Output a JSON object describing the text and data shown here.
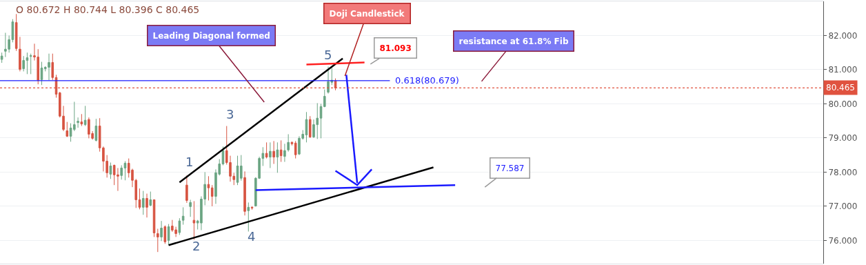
{
  "chart_data": {
    "type": "candlestick",
    "categories": [
      null,
      null,
      null,
      null,
      null,
      null,
      null,
      null,
      null,
      null,
      null,
      null,
      null,
      null,
      null,
      null,
      null,
      null,
      null,
      null,
      null,
      null,
      null,
      null,
      null,
      null,
      null,
      null,
      null,
      null,
      null,
      null,
      null,
      null,
      null,
      null,
      null,
      null,
      null,
      null,
      null,
      null,
      null,
      null,
      null,
      null,
      null,
      null,
      null,
      null,
      null,
      null,
      null,
      null,
      null,
      null,
      null,
      null,
      null,
      null,
      null,
      null,
      null,
      null,
      null,
      null,
      null,
      null,
      null,
      null,
      null,
      null,
      null,
      null,
      null,
      null,
      null,
      null,
      null,
      null,
      null,
      null,
      null,
      null,
      null,
      null,
      null,
      null,
      null,
      null,
      null,
      null,
      null,
      null,
      null,
      null,
      null,
      null,
      null,
      null,
      null,
      null,
      null,
      null,
      null,
      null,
      null,
      null,
      null,
      null,
      null,
      null,
      null,
      null,
      null,
      null,
      null,
      null,
      null,
      null,
      null,
      null,
      null,
      null,
      null,
      null,
      null,
      null,
      null,
      null,
      null,
      null,
      null,
      null,
      null,
      null,
      null,
      null,
      null,
      null,
      null,
      null,
      null,
      null,
      null,
      null,
      null,
      null,
      null,
      null,
      null,
      null,
      null,
      null,
      null,
      null,
      null,
      null,
      null,
      null,
      null,
      null,
      null,
      null,
      null,
      null,
      null,
      null,
      null,
      null,
      null,
      null,
      null,
      null,
      null,
      null,
      null,
      null,
      null,
      null,
      null,
      null,
      null,
      null,
      null,
      null,
      null,
      null,
      null,
      null,
      null,
      null,
      null,
      null,
      null,
      null,
      null,
      null,
      null,
      null,
      null,
      null,
      null,
      null,
      null,
      null,
      null,
      null,
      null,
      null,
      null,
      null,
      null,
      null,
      null,
      null,
      null,
      null,
      null,
      null,
      null,
      null,
      null,
      null,
      null,
      null,
      null
    ],
    "ohlc": [
      [
        81.3,
        81.5,
        81.2,
        81.4
      ],
      [
        81.54,
        82.08,
        81.37,
        81.6
      ],
      [
        81.6,
        82.0,
        81.5,
        81.88
      ],
      [
        81.88,
        82.48,
        81.8,
        82.4
      ],
      [
        82.38,
        82.63,
        81.55,
        81.62
      ],
      [
        81.6,
        81.96,
        80.95,
        81.01
      ],
      [
        81.03,
        81.4,
        80.95,
        81.27
      ],
      [
        81.27,
        81.5,
        80.87,
        81.35
      ],
      [
        81.39,
        81.47,
        80.87,
        81.41
      ],
      [
        81.41,
        81.76,
        81.27,
        81.37
      ],
      [
        81.37,
        81.6,
        80.57,
        80.69
      ],
      [
        80.71,
        81.23,
        80.55,
        81.05
      ],
      [
        81.03,
        81.1,
        80.95,
        81.07
      ],
      [
        81.07,
        81.47,
        80.69,
        81.21
      ],
      [
        81.21,
        81.47,
        80.7,
        80.77
      ],
      [
        80.77,
        80.85,
        80.18,
        80.28
      ],
      [
        80.32,
        80.35,
        79.6,
        79.64
      ],
      [
        79.64,
        79.94,
        79.2,
        79.25
      ],
      [
        79.21,
        79.47,
        79.03,
        79.05
      ],
      [
        79.05,
        79.43,
        78.89,
        79.29
      ],
      [
        79.25,
        80.06,
        79.2,
        79.39
      ],
      [
        79.45,
        79.6,
        79.3,
        79.49
      ],
      [
        79.47,
        79.7,
        79.35,
        79.41
      ],
      [
        79.39,
        79.94,
        79.35,
        79.52
      ],
      [
        79.54,
        79.6,
        78.99,
        79.11
      ],
      [
        79.13,
        79.2,
        78.95,
        78.99
      ],
      [
        78.93,
        79.56,
        78.9,
        79.35
      ],
      [
        79.35,
        79.58,
        78.6,
        78.71
      ],
      [
        78.71,
        78.75,
        78.02,
        78.32
      ],
      [
        78.32,
        78.5,
        77.84,
        77.98
      ],
      [
        77.94,
        78.28,
        77.8,
        78.18
      ],
      [
        78.2,
        78.22,
        77.62,
        77.92
      ],
      [
        77.92,
        78.12,
        77.45,
        77.88
      ],
      [
        77.9,
        78.2,
        77.78,
        78.12
      ],
      [
        78.12,
        78.32,
        77.76,
        78.26
      ],
      [
        78.26,
        78.4,
        77.84,
        77.98
      ],
      [
        78.06,
        78.1,
        77.56,
        77.76
      ],
      [
        77.76,
        77.8,
        76.95,
        77.19
      ],
      [
        77.19,
        77.52,
        76.91,
        76.97
      ],
      [
        76.97,
        77.45,
        76.75,
        77.23
      ],
      [
        77.23,
        77.37,
        76.67,
        76.97
      ],
      [
        77.03,
        77.43,
        77.0,
        77.19
      ],
      [
        77.19,
        77.2,
        76.1,
        76.22
      ],
      [
        76.2,
        76.34,
        75.66,
        76.1
      ],
      [
        76.1,
        76.57,
        75.98,
        76.36
      ],
      [
        76.4,
        76.44,
        75.9,
        75.96
      ],
      [
        76.0,
        76.48,
        75.86,
        76.4
      ],
      [
        76.42,
        76.6,
        76.25,
        76.3
      ],
      [
        76.31,
        76.4,
        76.1,
        76.2
      ],
      [
        76.23,
        76.65,
        76.16,
        76.57
      ],
      [
        76.59,
        76.97,
        76.46,
        76.71
      ],
      [
        77.62,
        77.9,
        77.1,
        77.17
      ],
      [
        76.99,
        77.19,
        76.69,
        77.11
      ],
      [
        76.59,
        77.15,
        76.02,
        76.51
      ],
      [
        76.51,
        76.6,
        76.32,
        76.57
      ],
      [
        76.51,
        77.29,
        76.3,
        77.21
      ],
      [
        77.21,
        78.0,
        77.03,
        77.64
      ],
      [
        77.64,
        77.88,
        77.17,
        77.54
      ],
      [
        77.54,
        77.62,
        77.0,
        77.29
      ],
      [
        77.29,
        78.08,
        77.07,
        77.98
      ],
      [
        77.94,
        78.38,
        77.9,
        78.24
      ],
      [
        78.24,
        78.75,
        78.2,
        78.63
      ],
      [
        78.63,
        79.35,
        78.22,
        78.28
      ],
      [
        78.28,
        78.48,
        77.72,
        77.88
      ],
      [
        77.88,
        77.98,
        77.62,
        77.78
      ],
      [
        77.7,
        78.48,
        77.62,
        78.18
      ],
      [
        77.82,
        78.5,
        77.75,
        78.18
      ],
      [
        77.84,
        78.02,
        76.73,
        76.85
      ],
      [
        76.87,
        77.11,
        76.26,
        76.97
      ],
      [
        76.97,
        77.0,
        76.9,
        76.95
      ],
      [
        77.01,
        77.85,
        76.99,
        77.82
      ],
      [
        77.82,
        78.45,
        77.8,
        78.4
      ],
      [
        78.4,
        78.73,
        78.18,
        78.55
      ],
      [
        78.55,
        78.87,
        78.4,
        78.44
      ],
      [
        78.44,
        78.87,
        78.12,
        78.61
      ],
      [
        78.61,
        78.91,
        78.24,
        78.44
      ],
      [
        78.44,
        78.87,
        77.98,
        78.65
      ],
      [
        78.65,
        78.93,
        78.3,
        78.48
      ],
      [
        78.46,
        78.83,
        78.3,
        78.63
      ],
      [
        78.65,
        79.11,
        78.6,
        78.87
      ],
      [
        78.87,
        78.9,
        78.78,
        78.83
      ],
      [
        78.85,
        78.91,
        78.4,
        78.51
      ],
      [
        78.53,
        79.05,
        78.5,
        78.99
      ],
      [
        78.99,
        79.23,
        78.95,
        79.11
      ],
      [
        79.09,
        79.76,
        78.87,
        79.54
      ],
      [
        79.54,
        79.64,
        79.0,
        79.03
      ],
      [
        79.03,
        79.54,
        79.0,
        79.39
      ],
      [
        79.39,
        80.02,
        78.97,
        79.58
      ],
      [
        79.58,
        80.0,
        78.99,
        79.92
      ],
      [
        79.92,
        80.42,
        79.9,
        80.22
      ],
      [
        80.34,
        81.09,
        80.3,
        80.65
      ],
      [
        80.63,
        81.05,
        80.55,
        80.69
      ],
      [
        80.672,
        80.744,
        80.396,
        80.465
      ],
      null,
      null,
      null,
      null,
      null,
      null,
      null,
      null,
      null,
      null,
      null,
      null,
      null,
      null,
      null,
      null,
      null,
      null,
      null,
      null,
      null,
      null,
      null,
      null,
      null,
      null,
      null,
      null,
      null,
      null,
      null,
      null,
      null,
      null,
      null,
      null,
      null,
      null,
      null,
      null,
      null,
      null,
      null,
      null,
      null,
      null,
      null,
      null,
      null,
      null,
      null,
      null,
      null,
      null,
      null,
      null,
      null,
      null,
      null,
      null,
      null,
      null,
      null,
      null,
      null,
      null,
      null,
      null,
      null,
      null,
      null,
      null,
      null,
      null,
      null,
      null,
      null,
      null,
      null,
      null,
      null,
      null,
      null,
      null,
      null,
      null,
      null,
      null,
      null,
      null,
      null,
      null,
      null,
      null,
      null,
      null,
      null,
      null,
      null,
      null,
      null,
      null,
      null,
      null,
      null,
      null,
      null,
      null,
      null,
      null,
      null,
      null,
      null,
      null,
      null,
      null,
      null,
      null,
      null,
      null,
      null,
      null,
      null,
      null,
      null,
      null,
      null,
      null,
      null,
      null,
      null,
      null,
      null,
      null
    ],
    "colors": [
      "#6ba583",
      "#6ba583",
      "#6ba583",
      "#6ba583",
      "#d75442",
      "#d75442",
      "#6ba583",
      "#6ba583",
      "#6ba583",
      "#d75442",
      "#d75442",
      "#6ba583",
      "#6ba583",
      "#6ba583",
      "#d75442",
      "#d75442",
      "#d75442",
      "#d75442",
      "#d75442",
      "#6ba583",
      "#6ba583",
      "#6ba583",
      "#d75442",
      "#6ba583",
      "#d75442",
      "#d75442",
      "#6ba583",
      "#d75442",
      "#d75442",
      "#d75442",
      "#6ba583",
      "#d75442",
      "#d75442",
      "#6ba583",
      "#6ba583",
      "#d75442",
      "#d75442",
      "#d75442",
      "#d75442",
      "#6ba583",
      "#d75442",
      "#6ba583",
      "#d75442",
      "#d75442",
      "#6ba583",
      "#d75442",
      "#6ba583",
      "#d75442",
      "#d75442",
      "#6ba583",
      "#6ba583",
      "#d75442",
      "#6ba583",
      "#d75442",
      "#6ba583",
      "#6ba583",
      "#6ba583",
      "#d75442",
      "#d75442",
      "#6ba583",
      "#6ba583",
      "#6ba583",
      "#d75442",
      "#d75442",
      "#d75442",
      "#6ba583",
      "#6ba583",
      "#d75442",
      "#6ba583",
      "#d75442",
      "#6ba583",
      "#6ba583",
      "#6ba583",
      "#d75442",
      "#6ba583",
      "#d75442",
      "#6ba583",
      "#d75442",
      "#6ba583",
      "#6ba583",
      "#d75442",
      "#d75442",
      "#6ba583",
      "#6ba583",
      "#6ba583",
      "#d75442",
      "#6ba583",
      "#6ba583",
      "#6ba583",
      "#6ba583",
      "#6ba583",
      "#6ba583",
      "#d75442",
      null,
      null,
      null,
      null,
      null,
      null,
      null,
      null,
      null,
      null,
      null,
      null,
      null,
      null,
      null,
      null,
      null,
      null,
      null,
      null,
      null,
      null,
      null,
      null,
      null,
      null,
      null,
      null,
      null,
      null,
      null,
      null,
      null,
      null,
      null,
      null,
      null,
      null,
      null,
      null,
      null,
      null,
      null,
      null,
      null,
      null,
      null,
      null,
      null,
      null,
      null,
      null,
      null,
      null,
      null,
      null,
      null,
      null,
      null,
      null,
      null,
      null,
      null,
      null,
      null,
      null,
      null,
      null,
      null,
      null,
      null,
      null,
      null,
      null,
      null,
      null,
      null,
      null,
      null,
      null,
      null,
      null,
      null,
      null,
      null,
      null,
      null,
      null,
      null,
      null,
      null,
      null,
      null,
      null,
      null,
      null,
      null,
      null,
      null,
      null,
      null,
      null,
      null,
      null,
      null,
      null,
      null,
      null,
      null,
      null,
      null,
      null,
      null,
      null,
      null,
      null,
      null,
      null,
      null,
      null,
      null,
      null,
      null,
      null,
      null,
      null,
      null,
      null,
      null,
      null,
      null,
      null,
      null,
      null
    ],
    "series": [
      {
        "type": "line",
        "color": "#000000",
        "values": [
          null,
          null,
          null,
          null,
          null,
          null,
          null,
          null,
          null,
          null,
          null,
          null,
          null,
          null,
          null,
          null,
          null,
          null,
          null,
          null,
          null,
          null,
          null,
          null,
          null,
          null,
          null,
          null,
          null,
          null,
          null,
          null,
          null,
          null,
          null,
          null,
          null,
          null,
          null,
          null,
          null,
          null,
          null,
          null,
          null,
          null,
          null,
          null,
          null,
          77.7,
          null,
          null,
          null,
          null,
          null,
          null,
          null,
          null,
          null,
          null,
          null,
          null,
          null,
          null,
          null,
          null,
          null,
          null,
          null,
          null,
          null,
          null,
          null,
          null,
          null,
          null,
          null,
          null,
          null,
          null,
          null,
          null,
          null,
          null,
          null,
          null,
          null,
          null,
          null,
          null,
          null,
          null,
          null,
          null,
          81.33,
          null,
          null,
          null,
          null,
          null,
          null,
          null,
          null,
          null,
          null,
          null,
          null,
          null,
          null,
          null,
          null,
          null,
          null,
          null,
          null,
          null,
          null,
          null,
          null,
          null,
          null,
          null,
          null,
          null,
          null,
          null,
          null,
          null,
          null,
          null,
          null,
          null,
          null,
          null,
          null,
          null,
          null,
          null,
          null,
          null,
          null,
          null,
          null,
          null,
          null,
          null,
          null,
          null,
          null,
          null,
          null,
          null,
          null,
          null,
          null,
          null,
          null,
          null,
          null,
          null,
          null,
          null,
          null,
          null,
          null,
          null,
          null,
          null,
          null,
          null,
          null,
          null,
          null,
          null,
          null,
          null,
          null,
          null,
          null,
          null,
          null,
          null,
          null,
          null,
          null,
          null,
          null,
          null,
          null,
          null,
          null,
          null,
          null,
          null,
          null,
          null,
          null,
          null,
          null,
          null,
          null,
          null,
          null,
          null,
          null,
          null,
          null,
          null,
          null,
          null,
          null,
          null,
          null,
          null,
          null,
          null,
          null,
          null,
          null,
          null,
          null,
          null,
          null,
          null,
          null,
          null,
          null
        ]
      },
      {
        "type": "line",
        "color": "#000000",
        "values": [
          null,
          null,
          null,
          null,
          null,
          null,
          null,
          null,
          null,
          null,
          null,
          null,
          null,
          null,
          null,
          null,
          null,
          null,
          null,
          null,
          null,
          null,
          null,
          null,
          null,
          null,
          null,
          null,
          null,
          null,
          null,
          null,
          null,
          null,
          null,
          null,
          null,
          null,
          null,
          null,
          null,
          null,
          null,
          null,
          null,
          null,
          75.86,
          null,
          null,
          null,
          null,
          null,
          null,
          null,
          null,
          null,
          null,
          null,
          null,
          null,
          null,
          null,
          null,
          null,
          null,
          null,
          null,
          null,
          null,
          null,
          null,
          null,
          null,
          null,
          null,
          null,
          null,
          null,
          null,
          null,
          null,
          null,
          null,
          null,
          null,
          null,
          null,
          null,
          null,
          null,
          null,
          null,
          null,
          null,
          null,
          null,
          null,
          null,
          null,
          null,
          null,
          null,
          null,
          null,
          null,
          null,
          null,
          null,
          null,
          null,
          null,
          null,
          null,
          null,
          null,
          null,
          null,
          null,
          null,
          78.14,
          null,
          null,
          null,
          null,
          null,
          null,
          null,
          null,
          null,
          null,
          null,
          null,
          null,
          null,
          null,
          null,
          null,
          null,
          null,
          null,
          null,
          null,
          null,
          null,
          null,
          null,
          null,
          null,
          null,
          null,
          null,
          null,
          null,
          null,
          null,
          null,
          null,
          null,
          null,
          null,
          null,
          null,
          null,
          null,
          null,
          null,
          null,
          null,
          null,
          null,
          null,
          null,
          null,
          null,
          null,
          null,
          null,
          null,
          null,
          null,
          null,
          null,
          null,
          null,
          null,
          null,
          null,
          null,
          null,
          null,
          null,
          null,
          null,
          null,
          null,
          null,
          null,
          null,
          null,
          null,
          null,
          null,
          null,
          null,
          null,
          null,
          null,
          null,
          null,
          null,
          null,
          null,
          null,
          null,
          null,
          null,
          null,
          null,
          null,
          null,
          null,
          null,
          null,
          null,
          null,
          null,
          null
        ]
      },
      {
        "type": "line",
        "color": "#1a1aff",
        "values": [
          null,
          null,
          null,
          null,
          null,
          null,
          null,
          null,
          null,
          null,
          null,
          null,
          null,
          null,
          null,
          null,
          null,
          null,
          null,
          null,
          null,
          null,
          null,
          null,
          null,
          null,
          null,
          null,
          null,
          null,
          null,
          null,
          null,
          null,
          null,
          null,
          null,
          null,
          null,
          null,
          null,
          null,
          null,
          null,
          null,
          null,
          null,
          null,
          null,
          null,
          null,
          null,
          null,
          null,
          null,
          null,
          null,
          null,
          null,
          null,
          null,
          null,
          null,
          null,
          null,
          null,
          null,
          null,
          null,
          null,
          77.47,
          null,
          null,
          null,
          null,
          null,
          null,
          null,
          null,
          null,
          null,
          null,
          null,
          null,
          null,
          null,
          null,
          null,
          null,
          null,
          null,
          null,
          null,
          null,
          null,
          null,
          null,
          null,
          null,
          null,
          null,
          null,
          null,
          null,
          null,
          null,
          null,
          null,
          null,
          null,
          null,
          null,
          null,
          null,
          null,
          null,
          null,
          null,
          null,
          null,
          null,
          null,
          null,
          null,
          null,
          77.62,
          null,
          null,
          null,
          null,
          null,
          null,
          null,
          null,
          null,
          null,
          null,
          null,
          null,
          null,
          null,
          null,
          null,
          null,
          null,
          null,
          null,
          null,
          null,
          null,
          null,
          null,
          null,
          null,
          null,
          null,
          null,
          null,
          null,
          null,
          null,
          null,
          null,
          null,
          null,
          null,
          null,
          null,
          null,
          null,
          null,
          null,
          null,
          null,
          null,
          null,
          null,
          null,
          null,
          null,
          null,
          null,
          null,
          null,
          null,
          null,
          null,
          null,
          null,
          null,
          null,
          null,
          null,
          null,
          null,
          null,
          null,
          null,
          null,
          null,
          null,
          null,
          null,
          null,
          null,
          null,
          null,
          null,
          null,
          null,
          null,
          null,
          null,
          null,
          null,
          null,
          null,
          null,
          null,
          null,
          null,
          null,
          null,
          null,
          null,
          null,
          null
        ]
      },
      {
        "type": "line",
        "color": "#ff2020",
        "values": [
          null,
          null,
          null,
          null,
          null,
          null,
          null,
          null,
          null,
          null,
          null,
          null,
          null,
          null,
          null,
          null,
          null,
          null,
          null,
          null,
          null,
          null,
          null,
          null,
          null,
          null,
          null,
          null,
          null,
          null,
          null,
          null,
          null,
          null,
          null,
          null,
          null,
          null,
          null,
          null,
          null,
          null,
          null,
          null,
          null,
          null,
          null,
          null,
          null,
          null,
          null,
          null,
          null,
          null,
          null,
          null,
          null,
          null,
          null,
          null,
          null,
          null,
          null,
          null,
          null,
          null,
          null,
          null,
          null,
          null,
          null,
          null,
          null,
          null,
          null,
          null,
          null,
          null,
          null,
          null,
          null,
          null,
          null,
          null,
          81.15,
          null,
          null,
          null,
          null,
          null,
          null,
          null,
          null,
          null,
          null,
          null,
          null,
          null,
          null,
          null,
          81.21,
          null,
          null,
          null,
          null,
          null,
          null,
          null,
          null,
          null,
          null,
          null,
          null,
          null,
          null,
          null,
          null,
          null,
          null,
          null,
          null,
          null,
          null,
          null,
          null,
          null,
          null,
          null,
          null,
          null,
          null,
          null,
          null,
          null,
          null,
          null,
          null,
          null,
          null,
          null,
          null,
          null,
          null,
          null,
          null,
          null,
          null,
          null,
          null,
          null,
          null,
          null,
          null,
          null,
          null,
          null,
          null,
          null,
          null,
          null,
          null,
          null,
          null,
          null,
          null,
          null,
          null,
          null,
          null,
          null,
          null,
          null,
          null,
          null,
          null,
          null,
          null,
          null,
          null,
          null,
          null,
          null,
          null,
          null,
          null,
          null,
          null,
          null,
          null,
          null,
          null,
          null,
          null,
          null,
          null,
          null,
          null,
          null,
          null,
          null,
          null,
          null,
          null,
          null,
          null,
          null,
          null,
          null,
          null,
          null,
          null,
          null,
          null,
          null,
          null,
          null,
          null,
          null,
          null,
          null,
          null,
          null,
          null,
          null,
          null,
          null,
          null
        ]
      },
      {
        "type": "line",
        "color": "#1a1aff",
        "values": [
          null,
          null,
          null,
          null,
          null,
          null,
          null,
          null,
          null,
          null,
          null,
          null,
          null,
          null,
          null,
          null,
          null,
          null,
          null,
          null,
          null,
          null,
          null,
          null,
          null,
          null,
          null,
          null,
          null,
          null,
          null,
          null,
          null,
          null,
          null,
          null,
          null,
          null,
          null,
          null,
          null,
          null,
          null,
          null,
          null,
          null,
          null,
          null,
          null,
          null,
          null,
          null,
          null,
          null,
          null,
          null,
          null,
          null,
          null,
          null,
          null,
          null,
          null,
          null,
          null,
          null,
          null,
          null,
          null,
          null,
          null,
          null,
          null,
          null,
          null,
          null,
          null,
          null,
          null,
          null,
          null,
          null,
          null,
          null,
          null,
          null,
          null,
          null,
          null,
          null,
          null,
          null,
          null,
          null,
          null,
          80.85,
          null,
          null,
          77.68,
          null,
          null,
          null,
          null,
          null,
          null,
          null,
          null,
          null,
          null,
          null,
          null,
          null,
          null,
          null,
          null,
          null,
          null,
          null,
          null,
          null,
          null,
          null,
          null,
          null,
          null,
          null,
          null,
          null,
          null,
          null,
          null,
          null,
          null,
          null,
          null,
          null,
          null,
          null,
          null,
          null,
          null,
          null,
          null,
          null,
          null,
          null,
          null,
          null,
          null,
          null,
          null,
          null,
          null,
          null,
          null,
          null,
          null,
          null,
          null,
          null,
          null,
          null,
          null,
          null,
          null,
          null,
          null,
          null,
          null,
          null,
          null,
          null,
          null,
          null,
          null,
          null,
          null,
          null,
          null,
          null,
          null,
          null,
          null,
          null,
          null,
          null,
          null,
          null,
          null,
          null,
          null,
          null,
          null,
          null,
          null,
          null,
          null,
          null,
          null,
          null,
          null,
          null,
          null,
          null,
          null,
          null,
          null,
          null,
          null,
          null,
          null,
          null,
          null,
          null,
          null,
          null,
          null,
          null,
          null,
          null,
          null,
          null,
          null,
          null,
          null,
          null,
          null
        ]
      },
      {
        "type": "line",
        "color": "#1a1aff",
        "values": [
          null,
          null,
          null,
          null,
          null,
          null,
          null,
          null,
          null,
          null,
          null,
          null,
          null,
          null,
          null,
          null,
          null,
          null,
          null,
          null,
          null,
          null,
          null,
          null,
          null,
          null,
          null,
          null,
          null,
          null,
          null,
          null,
          null,
          null,
          null,
          null,
          null,
          null,
          null,
          null,
          null,
          null,
          null,
          null,
          null,
          null,
          null,
          null,
          null,
          null,
          null,
          null,
          null,
          null,
          null,
          null,
          null,
          null,
          null,
          null,
          null,
          null,
          null,
          null,
          null,
          null,
          null,
          null,
          null,
          null,
          null,
          null,
          null,
          null,
          null,
          null,
          null,
          null,
          null,
          null,
          null,
          null,
          null,
          null,
          null,
          null,
          null,
          null,
          null,
          null,
          null,
          null,
          78.04,
          null,
          null,
          null,
          null,
          null,
          77.62,
          null,
          null,
          null,
          78.08,
          null,
          null,
          null,
          null,
          null,
          null,
          null,
          null,
          null,
          null,
          null,
          null,
          null,
          null,
          null,
          null,
          null,
          null,
          null,
          null,
          null,
          null,
          null,
          null,
          null,
          null,
          null,
          null,
          null,
          null,
          null,
          null,
          null,
          null,
          null,
          null,
          null,
          null,
          null,
          null,
          null,
          null,
          null,
          null,
          null,
          null,
          null,
          null,
          null,
          null,
          null,
          null,
          null,
          null,
          null,
          null,
          null,
          null,
          null,
          null,
          null,
          null,
          null,
          null,
          null,
          null,
          null,
          null,
          null,
          null,
          null,
          null,
          null,
          null,
          null,
          null,
          null,
          null,
          null,
          null,
          null,
          null,
          null,
          null,
          null,
          null,
          null,
          null,
          null,
          null,
          null,
          null,
          null,
          null,
          null,
          null,
          null,
          null,
          null,
          null,
          null,
          null,
          null,
          null,
          null,
          null,
          null,
          null,
          null,
          null,
          null,
          null,
          null,
          null,
          null,
          null,
          null,
          null,
          null,
          null,
          null,
          null,
          null,
          null
        ]
      }
    ],
    "ylim": [
      75.32,
      83.0
    ],
    "yticks": [
      {
        "value": 76,
        "label": "76.000"
      },
      {
        "value": 77,
        "label": "77.000"
      },
      {
        "value": 78,
        "label": "78.000"
      },
      {
        "value": 79,
        "label": "79.000"
      },
      {
        "value": 80,
        "label": "80.000"
      },
      {
        "value": 81,
        "label": "81.000"
      },
      {
        "value": 82,
        "label": "82.000"
      }
    ],
    "ref_lines": [
      {
        "axis": "y",
        "value": 80.679,
        "label": "0.618(80.679)",
        "color": "#1a1aff"
      },
      {
        "axis": "y",
        "value": 80.465,
        "label": "80.465",
        "color": "#e0523f",
        "line_style": "dotted"
      }
    ],
    "annotations": [
      "O 80.672 H 80.744 L 80.396 C 80.465",
      "Leading Diagonal formed",
      "Doji Candlestick",
      "resistance at 61.8% Fib",
      "81.093",
      "77.587",
      "1",
      "2",
      "3",
      "4",
      "5"
    ],
    "grid": "y",
    "tick_labels": "y",
    "line_style": "solid"
  }
}
